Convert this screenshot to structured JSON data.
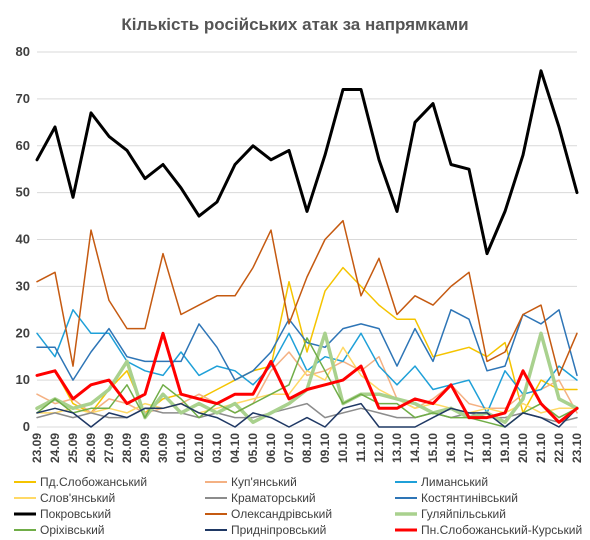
{
  "chart_data": {
    "type": "line",
    "title": "Кількість російських атак за напрямками",
    "xlabel": "",
    "ylabel": "",
    "ylim": [
      0,
      80
    ],
    "yticks": [
      0,
      10,
      20,
      30,
      40,
      50,
      60,
      70,
      80
    ],
    "grid": true,
    "legend_position": "bottom",
    "categories": [
      "23.09",
      "24.09",
      "25.09",
      "26.09",
      "27.09",
      "28.09",
      "29.09",
      "30.09",
      "01.10",
      "02.10",
      "03.10",
      "04.10",
      "05.10",
      "06.10",
      "07.10",
      "08.10",
      "09.10",
      "10.10",
      "11.10",
      "12.10",
      "13.10",
      "14.10",
      "15.10",
      "16.10",
      "17.10",
      "18.10",
      "19.10",
      "20.10",
      "21.10",
      "22.10",
      "23.10"
    ],
    "series": [
      {
        "name": "Пд.Слобожанський",
        "color": "#f5c400",
        "width": 1.5,
        "values": [
          11,
          12,
          5,
          3,
          8,
          12,
          3,
          6,
          7,
          6,
          8,
          10,
          12,
          13,
          31,
          16,
          29,
          34,
          30,
          26,
          23,
          23,
          15,
          16,
          17,
          15,
          18,
          3,
          10,
          8,
          8
        ]
      },
      {
        "name": "Куп'янський",
        "color": "#f4b183",
        "width": 1.5,
        "values": [
          7,
          5,
          6,
          3,
          6,
          5,
          3,
          4,
          5,
          7,
          5,
          3,
          5,
          12,
          16,
          11,
          12,
          14,
          12,
          15,
          6,
          4,
          6,
          9,
          5,
          4,
          4,
          7,
          8,
          10,
          3
        ]
      },
      {
        "name": "Лиманський",
        "color": "#1fa0d8",
        "width": 1.5,
        "values": [
          20,
          15,
          25,
          20,
          20,
          14,
          12,
          11,
          16,
          11,
          13,
          12,
          9,
          13,
          20,
          12,
          15,
          14,
          20,
          13,
          9,
          13,
          8,
          9,
          10,
          3,
          12,
          7,
          8,
          13,
          10
        ]
      },
      {
        "name": "Слов'янський",
        "color": "#ffd966",
        "width": 1.5,
        "values": [
          3,
          3,
          4,
          3,
          4,
          3,
          5,
          4,
          5,
          3,
          4,
          5,
          6,
          7,
          7,
          12,
          10,
          17,
          11,
          8,
          6,
          4,
          5,
          4,
          3,
          4,
          3,
          5,
          3,
          4,
          4
        ]
      },
      {
        "name": "Краматорський",
        "color": "#8c8c8c",
        "width": 1.5,
        "values": [
          2,
          3,
          2,
          3,
          2,
          2,
          4,
          3,
          3,
          2,
          3,
          2,
          2,
          3,
          4,
          5,
          2,
          3,
          4,
          3,
          2,
          2,
          3,
          2,
          3,
          2,
          2,
          3,
          2,
          1,
          2
        ]
      },
      {
        "name": "Костянтинівський",
        "color": "#2e75b6",
        "width": 1.5,
        "values": [
          17,
          17,
          10,
          16,
          21,
          15,
          14,
          14,
          14,
          22,
          17,
          10,
          12,
          16,
          23,
          18,
          17,
          21,
          22,
          21,
          13,
          21,
          14,
          25,
          23,
          12,
          13,
          24,
          22,
          25,
          11
        ]
      },
      {
        "name": "Покровський",
        "color": "#000000",
        "width": 3,
        "values": [
          57,
          64,
          49,
          67,
          62,
          59,
          53,
          56,
          51,
          45,
          48,
          56,
          60,
          57,
          59,
          46,
          58,
          72,
          72,
          57,
          46,
          65,
          69,
          56,
          55,
          37,
          46,
          58,
          76,
          64,
          50
        ]
      },
      {
        "name": "Олександрівський",
        "color": "#c55a11",
        "width": 1.5,
        "values": [
          31,
          33,
          13,
          42,
          27,
          21,
          21,
          37,
          24,
          26,
          28,
          28,
          34,
          42,
          22,
          32,
          40,
          44,
          28,
          36,
          24,
          28,
          26,
          30,
          33,
          14,
          16,
          24,
          26,
          11,
          20
        ]
      },
      {
        "name": "Гуляйпільський",
        "color": "#a9d18e",
        "width": 3.5,
        "values": [
          4,
          6,
          4,
          5,
          8,
          14,
          2,
          7,
          3,
          5,
          3,
          5,
          1,
          3,
          5,
          8,
          20,
          5,
          7,
          7,
          6,
          5,
          3,
          4,
          2,
          3,
          1,
          6,
          20,
          6,
          4
        ]
      },
      {
        "name": "Оріхівський",
        "color": "#70ad47",
        "width": 1.5,
        "values": [
          3,
          6,
          3,
          4,
          4,
          9,
          2,
          9,
          6,
          2,
          5,
          3,
          5,
          7,
          9,
          19,
          12,
          5,
          7,
          5,
          5,
          2,
          3,
          2,
          2,
          1,
          0,
          3,
          5,
          2,
          4
        ]
      },
      {
        "name": "Придніпровський",
        "color": "#1f3864",
        "width": 1.5,
        "values": [
          3,
          4,
          3,
          0,
          3,
          2,
          4,
          4,
          5,
          3,
          2,
          0,
          3,
          2,
          0,
          2,
          0,
          4,
          5,
          0,
          0,
          0,
          2,
          4,
          3,
          3,
          0,
          3,
          2,
          0,
          4
        ]
      },
      {
        "name": "Пн.Слобожанський-Курський",
        "color": "#ff0000",
        "width": 3,
        "values": [
          11,
          12,
          6,
          9,
          10,
          5,
          7,
          20,
          7,
          6,
          5,
          7,
          7,
          14,
          6,
          8,
          9,
          10,
          13,
          4,
          4,
          6,
          5,
          9,
          2,
          2,
          3,
          12,
          5,
          1,
          4
        ]
      }
    ]
  }
}
